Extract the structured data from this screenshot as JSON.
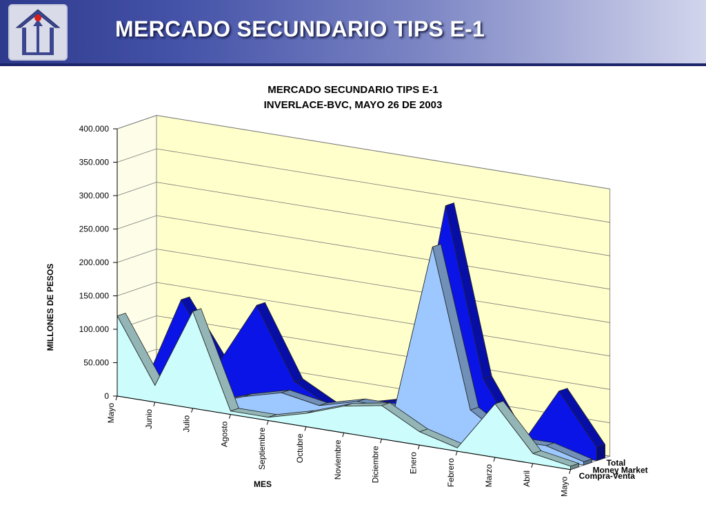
{
  "slide": {
    "title": "MERCADO SECUNDARIO TIPS E-1"
  },
  "colors": {
    "banner": "#3b46a0",
    "total": "#0a14e6",
    "money_market": "#9cc8ff",
    "compra_venta": "#ccfcfc",
    "plot_wall": "#ffffcc"
  },
  "chart_data": {
    "type": "area",
    "title": "MERCADO SECUNDARIO TIPS E-1",
    "subtitle": "INVERLACE-BVC, MAYO 26 DE 2003",
    "xlabel": "MES",
    "ylabel": "MILLONES DE PESOS",
    "ylim": [
      0,
      400000
    ],
    "yticks": [
      "0",
      "50.000",
      "100.000",
      "150.000",
      "200.000",
      "250.000",
      "300.000",
      "350.000",
      "400.000"
    ],
    "categories": [
      "Mayo",
      "Junio",
      "Julio",
      "Agosto",
      "Septiembre",
      "Octubre",
      "Noviembre",
      "Diciembre",
      "Enero",
      "Febrero",
      "Marzo",
      "Abril",
      "Mayo"
    ],
    "series": [
      {
        "name": "Compra-Venta",
        "values": [
          120000,
          25000,
          145000,
          5000,
          5000,
          20000,
          40000,
          50000,
          20000,
          5000,
          80000,
          15000,
          5000
        ]
      },
      {
        "name": "Money Market",
        "values": [
          0,
          0,
          0,
          20000,
          35000,
          25000,
          40000,
          40000,
          290000,
          55000,
          20000,
          20000,
          5000
        ]
      },
      {
        "name": "Total",
        "values": [
          0,
          140000,
          55000,
          150000,
          45000,
          15000,
          30000,
          45000,
          345000,
          95000,
          5000,
          95000,
          20000
        ]
      }
    ],
    "legend": "right",
    "grid": true
  }
}
